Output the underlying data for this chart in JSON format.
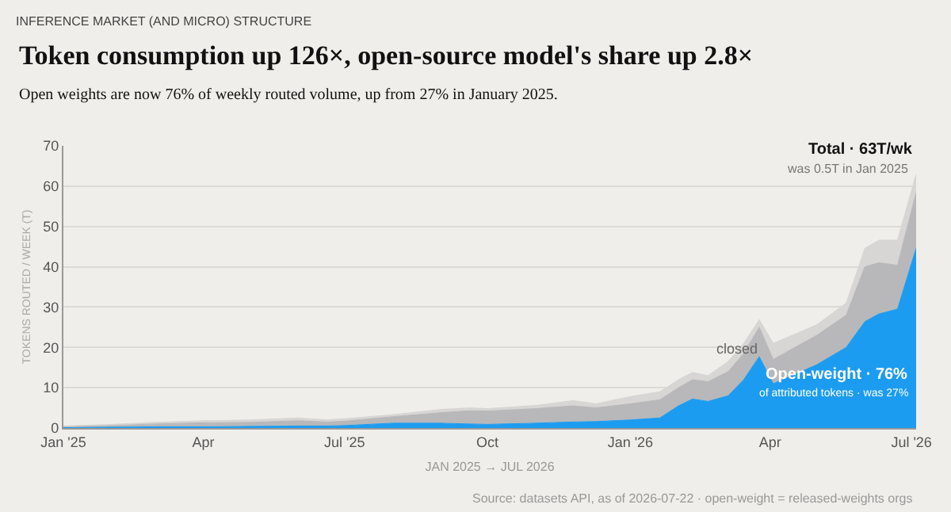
{
  "chart_data": {
    "type": "area",
    "stacked": true,
    "title": "Token consumption up 126×, open-source model's share up 2.8×",
    "subtitle": "Open weights are now 76% of weekly routed volume, up from 27% in January 2025.",
    "xlabel": "JAN 2025 → JUL 2026",
    "ylabel": "TOKENS ROUTED / WEEK (T)",
    "x": [
      "2025-01-01",
      "2025-02-01",
      "2025-03-01",
      "2025-04-01",
      "2025-05-01",
      "2025-06-01",
      "2025-06-20",
      "2025-07-01",
      "2025-08-01",
      "2025-09-01",
      "2025-09-20",
      "2025-10-01",
      "2025-11-01",
      "2025-11-25",
      "2025-12-10",
      "2026-01-01",
      "2026-01-20",
      "2026-02-01",
      "2026-02-10",
      "2026-02-20",
      "2026-03-05",
      "2026-03-15",
      "2026-03-25",
      "2026-04-03",
      "2026-05-01",
      "2026-05-20",
      "2026-06-01",
      "2026-06-10",
      "2026-06-22",
      "2026-07-04"
    ],
    "series": [
      {
        "name": "Open-weight · 76%",
        "color": "#1c9cf0",
        "values": [
          0.1,
          0.2,
          0.3,
          0.3,
          0.4,
          0.5,
          0.5,
          0.6,
          1.2,
          1.2,
          1.0,
          0.9,
          1.2,
          1.5,
          1.6,
          2.0,
          2.5,
          5.5,
          7.2,
          6.6,
          8.0,
          12.0,
          17.7,
          11.0,
          15.7,
          20.0,
          26.4,
          28.3,
          29.5,
          44.6
        ]
      },
      {
        "name": "closed",
        "color": "#b8b8ba",
        "values": [
          0.2,
          0.4,
          0.7,
          1.0,
          1.0,
          1.3,
          1.0,
          1.1,
          1.6,
          2.6,
          3.3,
          3.3,
          3.6,
          4.0,
          3.4,
          4.0,
          4.5,
          4.5,
          4.8,
          4.9,
          6.0,
          6.5,
          7.3,
          6.0,
          7.3,
          8.0,
          13.6,
          12.7,
          10.9,
          13.8
        ]
      },
      {
        "color": "#d7d6d4",
        "values": [
          0.2,
          0.3,
          0.4,
          0.5,
          0.6,
          0.7,
          0.5,
          0.6,
          0.5,
          0.8,
          0.7,
          0.6,
          0.8,
          1.3,
          1.0,
          1.8,
          2.0,
          2.0,
          1.8,
          1.5,
          2.5,
          2.5,
          1.9,
          4.0,
          2.6,
          3.0,
          4.6,
          5.6,
          6.2,
          4.6
        ]
      }
    ],
    "xlim": [
      "2025-01-01",
      "2026-07-04"
    ],
    "xticks": [
      {
        "value": "2025-01-01",
        "label": "Jan '25"
      },
      {
        "value": "2025-04-01",
        "label": "Apr"
      },
      {
        "value": "2025-07-01",
        "label": "Jul '25"
      },
      {
        "value": "2025-10-01",
        "label": "Oct"
      },
      {
        "value": "2026-01-01",
        "label": "Jan '26"
      },
      {
        "value": "2026-04-01",
        "label": "Apr"
      },
      {
        "value": "2026-07-01",
        "label": "Jul '26"
      }
    ],
    "ylim": [
      0,
      70
    ],
    "yticks": [
      0,
      10,
      20,
      30,
      40,
      50,
      60,
      70
    ],
    "grid": "y",
    "legend": false,
    "annotations": [
      "INFERENCE MARKET (AND MICRO) STRUCTURE",
      {
        "text": "Total · 63T/wk",
        "x": "2026-07-04",
        "y": 63
      },
      "was 0.5T in Jan 2025",
      "of attributed tokens · was 27%",
      "Source: datasets API, as of 2026-07-22 · open-weight = released-weights orgs"
    ]
  }
}
